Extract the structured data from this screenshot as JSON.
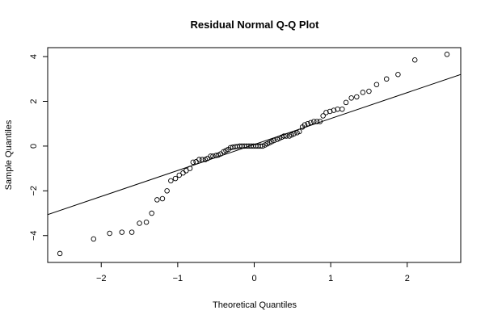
{
  "chart_data": {
    "type": "scatter",
    "title": "Residual Normal Q-Q Plot",
    "xlabel": "Theoretical Quantiles",
    "ylabel": "Sample Quantiles",
    "xlim": [
      -2.7,
      2.7
    ],
    "ylim": [
      -5.2,
      4.4
    ],
    "xticks": [
      -2,
      -1,
      0,
      1,
      2
    ],
    "yticks": [
      -4,
      -2,
      0,
      2,
      4
    ],
    "xtick_labels": [
      "−2",
      "−1",
      "0",
      "1",
      "2"
    ],
    "ytick_labels": [
      "−4",
      "−2",
      "0",
      "2",
      "4"
    ],
    "grid": false,
    "reference_line": {
      "intercept": 0.07,
      "slope": 1.16
    },
    "points": [
      [
        -2.54,
        -4.8
      ],
      [
        -2.1,
        -4.15
      ],
      [
        -1.89,
        -3.9
      ],
      [
        -1.73,
        -3.85
      ],
      [
        -1.6,
        -3.85
      ],
      [
        -1.5,
        -3.45
      ],
      [
        -1.41,
        -3.4
      ],
      [
        -1.34,
        -3.0
      ],
      [
        -1.27,
        -2.4
      ],
      [
        -1.2,
        -2.35
      ],
      [
        -1.14,
        -2.0
      ],
      [
        -1.09,
        -1.55
      ],
      [
        -1.03,
        -1.45
      ],
      [
        -0.98,
        -1.3
      ],
      [
        -0.93,
        -1.2
      ],
      [
        -0.89,
        -1.1
      ],
      [
        -0.84,
        -1.0
      ],
      [
        -0.8,
        -0.72
      ],
      [
        -0.76,
        -0.7
      ],
      [
        -0.72,
        -0.6
      ],
      [
        -0.68,
        -0.6
      ],
      [
        -0.64,
        -0.6
      ],
      [
        -0.61,
        -0.55
      ],
      [
        -0.57,
        -0.45
      ],
      [
        -0.54,
        -0.45
      ],
      [
        -0.5,
        -0.42
      ],
      [
        -0.47,
        -0.4
      ],
      [
        -0.44,
        -0.35
      ],
      [
        -0.4,
        -0.25
      ],
      [
        -0.37,
        -0.2
      ],
      [
        -0.34,
        -0.15
      ],
      [
        -0.31,
        -0.07
      ],
      [
        -0.28,
        -0.05
      ],
      [
        -0.25,
        -0.03
      ],
      [
        -0.22,
        -0.02
      ],
      [
        -0.19,
        0.0
      ],
      [
        -0.16,
        0.0
      ],
      [
        -0.13,
        0.0
      ],
      [
        -0.1,
        0.0
      ],
      [
        -0.07,
        0.0
      ],
      [
        -0.04,
        0.0
      ],
      [
        -0.01,
        0.0
      ],
      [
        0.02,
        0.0
      ],
      [
        0.05,
        0.0
      ],
      [
        0.08,
        0.0
      ],
      [
        0.11,
        0.0
      ],
      [
        0.14,
        0.05
      ],
      [
        0.17,
        0.1
      ],
      [
        0.2,
        0.15
      ],
      [
        0.23,
        0.2
      ],
      [
        0.26,
        0.25
      ],
      [
        0.3,
        0.3
      ],
      [
        0.33,
        0.35
      ],
      [
        0.36,
        0.4
      ],
      [
        0.39,
        0.45
      ],
      [
        0.42,
        0.45
      ],
      [
        0.46,
        0.45
      ],
      [
        0.49,
        0.5
      ],
      [
        0.52,
        0.55
      ],
      [
        0.56,
        0.6
      ],
      [
        0.59,
        0.65
      ],
      [
        0.63,
        0.85
      ],
      [
        0.66,
        0.95
      ],
      [
        0.7,
        1.0
      ],
      [
        0.74,
        1.05
      ],
      [
        0.78,
        1.1
      ],
      [
        0.82,
        1.1
      ],
      [
        0.86,
        1.1
      ],
      [
        0.9,
        1.35
      ],
      [
        0.94,
        1.5
      ],
      [
        0.99,
        1.55
      ],
      [
        1.04,
        1.6
      ],
      [
        1.09,
        1.65
      ],
      [
        1.15,
        1.65
      ],
      [
        1.2,
        1.95
      ],
      [
        1.27,
        2.15
      ],
      [
        1.34,
        2.2
      ],
      [
        1.42,
        2.4
      ],
      [
        1.5,
        2.45
      ],
      [
        1.6,
        2.75
      ],
      [
        1.73,
        3.0
      ],
      [
        1.88,
        3.2
      ],
      [
        2.1,
        3.85
      ],
      [
        2.52,
        4.1
      ]
    ]
  }
}
